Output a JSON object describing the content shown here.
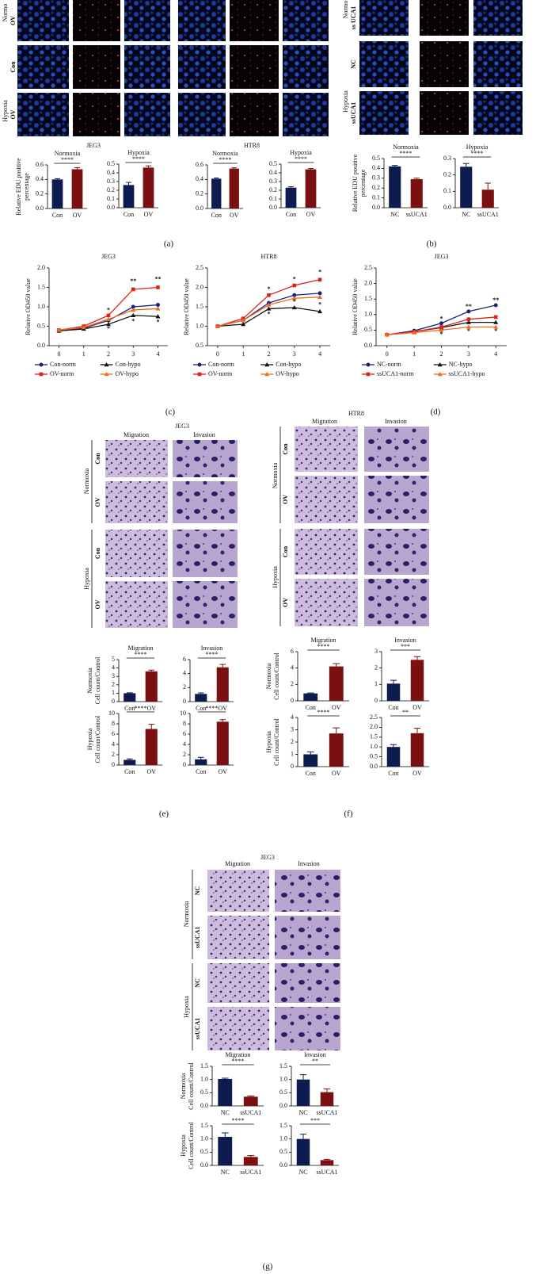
{
  "chart_data": [
    {
      "type": "bar",
      "title": "Normoxia",
      "ylabel": [
        "Relative EDU positive",
        "percentage"
      ],
      "categories": [
        "Con",
        "OV"
      ],
      "values": [
        0.4,
        0.54
      ],
      "errors": [
        0.01,
        0.02
      ],
      "colors": [
        "#0d1b4f",
        "#7a1010"
      ],
      "ylim": [
        0,
        0.6
      ],
      "yticks": [
        {
          "value": 0,
          "label": "0.0"
        },
        0.2,
        0.4,
        0.6
      ],
      "significance": "****"
    },
    {
      "type": "bar",
      "title": "Hypoxia",
      "categories": [
        "Con",
        "OV"
      ],
      "values": [
        0.26,
        0.46
      ],
      "errors": [
        0.03,
        0.02
      ],
      "colors": [
        "#0d1b4f",
        "#7a1010"
      ],
      "ylim": [
        0,
        0.5
      ],
      "yticks": [
        {
          "value": 0,
          "label": "0.0"
        },
        0.1,
        0.2,
        0.3,
        0.4,
        0.5
      ],
      "significance": "****"
    },
    {
      "type": "bar",
      "title": "Normoxia",
      "categories": [
        "Con",
        "OV"
      ],
      "values": [
        0.41,
        0.55
      ],
      "errors": [
        0.01,
        0.01
      ],
      "colors": [
        "#0d1b4f",
        "#7a1010"
      ],
      "ylim": [
        0,
        0.6
      ],
      "yticks": [
        {
          "value": 0,
          "label": "0.0"
        },
        0.2,
        0.4,
        0.6
      ],
      "significance": "****"
    },
    {
      "type": "bar",
      "title": "Hypoxia",
      "categories": [
        "Con",
        "OV"
      ],
      "values": [
        0.23,
        0.44
      ],
      "errors": [
        0.01,
        0.01
      ],
      "colors": [
        "#0d1b4f",
        "#7a1010"
      ],
      "ylim": [
        0,
        0.5
      ],
      "yticks": [
        {
          "value": 0,
          "label": "0.0"
        },
        0.1,
        0.2,
        0.3,
        0.4,
        0.5
      ],
      "significance": "****"
    },
    {
      "type": "bar",
      "title": "Normoxia",
      "ylabel": [
        "Relative EDU positive",
        "percentage"
      ],
      "categories": [
        "NC",
        "ssUCA1"
      ],
      "values": [
        0.42,
        0.29
      ],
      "errors": [
        0.01,
        0.01
      ],
      "colors": [
        "#0d1b4f",
        "#7a1010"
      ],
      "ylim": [
        0,
        0.5
      ],
      "yticks": [
        {
          "value": 0,
          "label": "0.0"
        },
        0.1,
        0.2,
        0.3,
        0.4,
        0.5
      ],
      "significance": "****"
    },
    {
      "type": "bar",
      "title": "Hypoxia",
      "categories": [
        "NC",
        "ssUCA1"
      ],
      "values": [
        0.25,
        0.11
      ],
      "errors": [
        0.02,
        0.04
      ],
      "colors": [
        "#0d1b4f",
        "#7a1010"
      ],
      "ylim": [
        0,
        0.3
      ],
      "yticks": [
        {
          "value": 0,
          "label": "0.0"
        },
        0.1,
        0.2,
        0.3
      ],
      "significance": "****"
    },
    {
      "type": "line",
      "title": "JEG3",
      "ylabel": [
        "Relative OD450 value"
      ],
      "x": [
        0,
        1,
        2,
        3,
        4
      ],
      "xlim": [
        -0.4,
        4.4
      ],
      "xticks": [
        0,
        1,
        2,
        3,
        4
      ],
      "ylim": [
        0,
        2.0
      ],
      "yticks": [
        {
          "value": 0,
          "label": "0.0"
        },
        0.5,
        {
          "value": 1,
          "label": "1.0"
        },
        1.5,
        {
          "value": 2,
          "label": "2.0"
        }
      ],
      "legend": "bottom",
      "series": [
        {
          "name": "Con-norm",
          "color": "#1a237e",
          "marker": "circle",
          "values": [
            0.38,
            0.45,
            0.65,
            1.0,
            1.05
          ]
        },
        {
          "name": "Con-hypo",
          "color": "#111111",
          "marker": "triangle",
          "values": [
            0.38,
            0.43,
            0.55,
            0.78,
            0.75
          ]
        },
        {
          "name": "OV-norm",
          "color": "#e0201b",
          "marker": "square",
          "values": [
            0.4,
            0.5,
            0.78,
            1.45,
            1.5
          ]
        },
        {
          "name": "OV-hypo",
          "color": "#f26a1b",
          "marker": "triangle",
          "values": [
            0.4,
            0.47,
            0.68,
            0.92,
            0.95
          ]
        }
      ],
      "annotations": [
        {
          "x": 2,
          "y": 0.9,
          "text": "*",
          "color": "#e0201b"
        },
        {
          "x": 3,
          "y": 1.65,
          "text": "**",
          "color": "#e0201b"
        },
        {
          "x": 4,
          "y": 1.7,
          "text": "**",
          "color": "#e0201b"
        },
        {
          "x": 2,
          "y": 0.42,
          "text": "*",
          "color": "#111111"
        },
        {
          "x": 3,
          "y": 0.62,
          "text": "*",
          "color": "#111111"
        },
        {
          "x": 4,
          "y": 0.6,
          "text": "*",
          "color": "#111111"
        }
      ]
    },
    {
      "type": "line",
      "title": "HTR8",
      "ylabel": [
        "Relative OD450 value"
      ],
      "x": [
        0,
        1,
        2,
        3,
        4
      ],
      "xlim": [
        -0.4,
        4.4
      ],
      "xticks": [
        0,
        1,
        2,
        3,
        4
      ],
      "ylim": [
        0.5,
        2.5
      ],
      "yticks": [
        0.5,
        {
          "value": 1,
          "label": "1.0"
        },
        1.5,
        {
          "value": 2,
          "label": "2.0"
        },
        2.5
      ],
      "legend": "bottom",
      "series": [
        {
          "name": "Con-norm",
          "color": "#1a237e",
          "marker": "circle",
          "values": [
            1.0,
            1.15,
            1.6,
            1.8,
            1.85
          ]
        },
        {
          "name": "Con-hypo",
          "color": "#111111",
          "marker": "triangle",
          "values": [
            1.0,
            1.05,
            1.45,
            1.48,
            1.38
          ]
        },
        {
          "name": "OV-norm",
          "color": "#e0201b",
          "marker": "square",
          "values": [
            1.0,
            1.2,
            1.8,
            2.05,
            2.2
          ]
        },
        {
          "name": "OV-hypo",
          "color": "#f26a1b",
          "marker": "triangle",
          "values": [
            1.0,
            1.15,
            1.55,
            1.72,
            1.75
          ]
        }
      ],
      "annotations": [
        {
          "x": 2,
          "y": 1.95,
          "text": "*",
          "color": "#e0201b"
        },
        {
          "x": 3,
          "y": 2.2,
          "text": "*",
          "color": "#e0201b"
        },
        {
          "x": 4,
          "y": 2.38,
          "text": "*",
          "color": "#e0201b"
        },
        {
          "x": 2,
          "y": 1.3,
          "text": "*",
          "color": "#111111"
        },
        {
          "x": 3,
          "y": 1.62,
          "text": "*",
          "color": "#e0201b"
        },
        {
          "x": 4,
          "y": 1.55,
          "text": "*",
          "color": "#e0201b"
        }
      ]
    },
    {
      "type": "line",
      "title": "JEG3",
      "ylabel": [
        "Relative OD450 value"
      ],
      "x": [
        0,
        1,
        2,
        3,
        4
      ],
      "xlim": [
        -0.4,
        4.4
      ],
      "xticks": [
        0,
        1,
        2,
        3,
        4
      ],
      "ylim": [
        0,
        2.5
      ],
      "yticks": [
        {
          "value": 0,
          "label": "0.0"
        },
        0.5,
        {
          "value": 1,
          "label": "1.0"
        },
        1.5,
        {
          "value": 2,
          "label": "2.0"
        },
        2.5
      ],
      "legend": "bottom",
      "series": [
        {
          "name": "NC-norm",
          "color": "#1a237e",
          "marker": "circle",
          "values": [
            0.35,
            0.48,
            0.72,
            1.1,
            1.3
          ]
        },
        {
          "name": "NC-hypo",
          "color": "#111111",
          "marker": "triangle",
          "values": [
            0.35,
            0.45,
            0.58,
            0.75,
            0.75
          ]
        },
        {
          "name": "ssUCA1-norm",
          "color": "#e0201b",
          "marker": "square",
          "values": [
            0.35,
            0.45,
            0.6,
            0.85,
            0.92
          ]
        },
        {
          "name": "ssUCA1-hypo",
          "color": "#f26a1b",
          "marker": "triangle",
          "values": [
            0.35,
            0.42,
            0.5,
            0.6,
            0.6
          ]
        }
      ],
      "annotations": [
        {
          "x": 2,
          "y": 0.85,
          "text": "*",
          "color": "#111111"
        },
        {
          "x": 3,
          "y": 1.25,
          "text": "**",
          "color": "#111111"
        },
        {
          "x": 4,
          "y": 1.45,
          "text": "**",
          "color": "#111111"
        },
        {
          "x": 2,
          "y": 0.35,
          "text": "*",
          "color": "#f26a1b"
        },
        {
          "x": 3,
          "y": 0.45,
          "text": "*",
          "color": "#f26a1b"
        },
        {
          "x": 4,
          "y": 0.45,
          "text": "*",
          "color": "#f26a1b"
        }
      ]
    },
    {
      "type": "bar",
      "title": "Migration",
      "ylabel": [
        "Normoxia",
        "Cell count/Control"
      ],
      "categories": [
        "Con",
        "OV"
      ],
      "values": [
        1.0,
        3.6
      ],
      "errors": [
        0.05,
        0.15
      ],
      "colors": [
        "#0d1b4f",
        "#7a1010"
      ],
      "ylim": [
        0,
        5
      ],
      "yticks": [
        0,
        1,
        2,
        3,
        4,
        5
      ],
      "significance": "****"
    },
    {
      "type": "bar",
      "title": "Invasion",
      "categories": [
        "Con",
        "OV"
      ],
      "values": [
        1.1,
        4.9
      ],
      "errors": [
        0.15,
        0.4
      ],
      "colors": [
        "#0d1b4f",
        "#7a1010"
      ],
      "ylim": [
        0,
        6
      ],
      "yticks": [
        0,
        2,
        4,
        6
      ],
      "significance": "****"
    },
    {
      "type": "bar",
      "ylabel": [
        "Hypoxia",
        "Cell count/Control"
      ],
      "categories": [
        "Con",
        "OV"
      ],
      "values": [
        1.0,
        7.0
      ],
      "errors": [
        0.2,
        0.9
      ],
      "colors": [
        "#0d1b4f",
        "#7a1010"
      ],
      "ylim": [
        0,
        10
      ],
      "yticks": [
        0,
        2,
        4,
        6,
        8,
        10
      ],
      "significance": "****"
    },
    {
      "type": "bar",
      "categories": [
        "Con",
        "OV"
      ],
      "values": [
        1.1,
        8.4
      ],
      "errors": [
        0.4,
        0.4
      ],
      "colors": [
        "#0d1b4f",
        "#7a1010"
      ],
      "ylim": [
        0,
        10
      ],
      "yticks": [
        0,
        2,
        4,
        6,
        8,
        10
      ],
      "significance": "****"
    },
    {
      "type": "bar",
      "title": "Migration",
      "ylabel": [
        "Normoxia",
        "Cell count/Control"
      ],
      "categories": [
        "Con",
        "OV"
      ],
      "values": [
        0.9,
        4.2
      ],
      "errors": [
        0.05,
        0.35
      ],
      "colors": [
        "#0d1b4f",
        "#7a1010"
      ],
      "ylim": [
        0,
        6
      ],
      "yticks": [
        0,
        2,
        4,
        6
      ],
      "significance": "****"
    },
    {
      "type": "bar",
      "title": "Invasion",
      "categories": [
        "Con",
        "OV"
      ],
      "values": [
        1.05,
        2.5
      ],
      "errors": [
        0.2,
        0.2
      ],
      "colors": [
        "#0d1b4f",
        "#7a1010"
      ],
      "ylim": [
        0,
        3
      ],
      "yticks": [
        0,
        1,
        2,
        3
      ],
      "significance": "***"
    },
    {
      "type": "bar",
      "ylabel": [
        "Hypoxia",
        "Cell count/Control"
      ],
      "categories": [
        "Con",
        "OV"
      ],
      "values": [
        1.0,
        2.7
      ],
      "errors": [
        0.2,
        0.45
      ],
      "colors": [
        "#0d1b4f",
        "#7a1010"
      ],
      "ylim": [
        0,
        4
      ],
      "yticks": [
        0,
        1,
        2,
        3,
        4
      ],
      "significance": "****"
    },
    {
      "type": "bar",
      "categories": [
        "Con",
        "OV"
      ],
      "values": [
        1.0,
        1.7
      ],
      "errors": [
        0.12,
        0.25
      ],
      "colors": [
        "#0d1b4f",
        "#7a1010"
      ],
      "ylim": [
        0,
        2.5
      ],
      "yticks": [
        {
          "value": 0,
          "label": "0.0"
        },
        0.5,
        {
          "value": 1,
          "label": "1.0"
        },
        1.5,
        {
          "value": 2,
          "label": "2.0"
        },
        2.5
      ],
      "significance": "**"
    },
    {
      "type": "bar",
      "title": "Migration",
      "ylabel": [
        "Normoxia",
        "Cell count/Control"
      ],
      "categories": [
        "NC",
        "ssUCA1"
      ],
      "values": [
        1.02,
        0.35
      ],
      "errors": [
        0.03,
        0.03
      ],
      "colors": [
        "#0d1b4f",
        "#7a1010"
      ],
      "ylim": [
        0,
        1.5
      ],
      "yticks": [
        {
          "value": 0,
          "label": "0.0"
        },
        0.5,
        {
          "value": 1,
          "label": "1.0"
        },
        1.5
      ],
      "significance": "****"
    },
    {
      "type": "bar",
      "title": "Invasion",
      "categories": [
        "NC",
        "ssUCA1"
      ],
      "values": [
        1.0,
        0.52
      ],
      "errors": [
        0.18,
        0.12
      ],
      "colors": [
        "#0d1b4f",
        "#7a1010"
      ],
      "ylim": [
        0,
        1.5
      ],
      "yticks": [
        {
          "value": 0,
          "label": "0.0"
        },
        0.5,
        {
          "value": 1,
          "label": "1.0"
        },
        1.5
      ],
      "significance": "**"
    },
    {
      "type": "bar",
      "ylabel": [
        "Hypoxia",
        "Cell count/Control"
      ],
      "categories": [
        "NC",
        "ssUCA1"
      ],
      "values": [
        1.08,
        0.32
      ],
      "errors": [
        0.15,
        0.05
      ],
      "colors": [
        "#0d1b4f",
        "#7a1010"
      ],
      "ylim": [
        0,
        1.5
      ],
      "yticks": [
        {
          "value": 0,
          "label": "0.0"
        },
        0.5,
        {
          "value": 1,
          "label": "1.0"
        },
        1.5
      ],
      "significance": "****"
    },
    {
      "type": "bar",
      "categories": [
        "NC",
        "ssUCA1"
      ],
      "values": [
        1.0,
        0.2
      ],
      "errors": [
        0.18,
        0.03
      ],
      "colors": [
        "#0d1b4f",
        "#7a1010"
      ],
      "ylim": [
        0,
        1.5
      ],
      "yticks": [
        {
          "value": 0,
          "label": "0.0"
        },
        0.5,
        {
          "value": 1,
          "label": "1.0"
        },
        1.5
      ],
      "significance": "***"
    }
  ],
  "headings": [
    "JEG3",
    "HTR8"
  ],
  "panel_letters": [
    "(a)",
    "(b)",
    "(c)",
    "(d)",
    "(e)",
    "(f)",
    "(g)"
  ],
  "image_panels": [
    {
      "group_labels": [
        "Normo",
        "Hypoxia"
      ],
      "row_labels": [
        "OV",
        "Con",
        "OV"
      ]
    },
    {
      "group_labels": [
        "Normo",
        "Hypoxia"
      ],
      "row_labels": [
        "ss UCA1",
        "NC",
        "ssUCA1"
      ]
    },
    {
      "title": "JEG3",
      "columns": [
        "Migration",
        "Invasion"
      ],
      "group_labels": [
        "Normoxia",
        "Hypoxia"
      ],
      "row_labels": [
        "Con",
        "OV",
        "Con",
        "OV"
      ]
    },
    {
      "title": "HTR8",
      "columns": [
        "Migration",
        "Invasion"
      ],
      "group_labels": [
        "Normoxia",
        "Hypoxia"
      ],
      "row_labels": [
        "Con",
        "OV",
        "Con",
        "OV"
      ]
    },
    {
      "title": "JEG3",
      "columns": [
        "Migration",
        "Invasion"
      ],
      "group_labels": [
        "Normoxia",
        "Hypoxia"
      ],
      "row_labels": [
        "NC",
        "ssUCA1",
        "NC",
        "ssUCA1"
      ]
    }
  ]
}
